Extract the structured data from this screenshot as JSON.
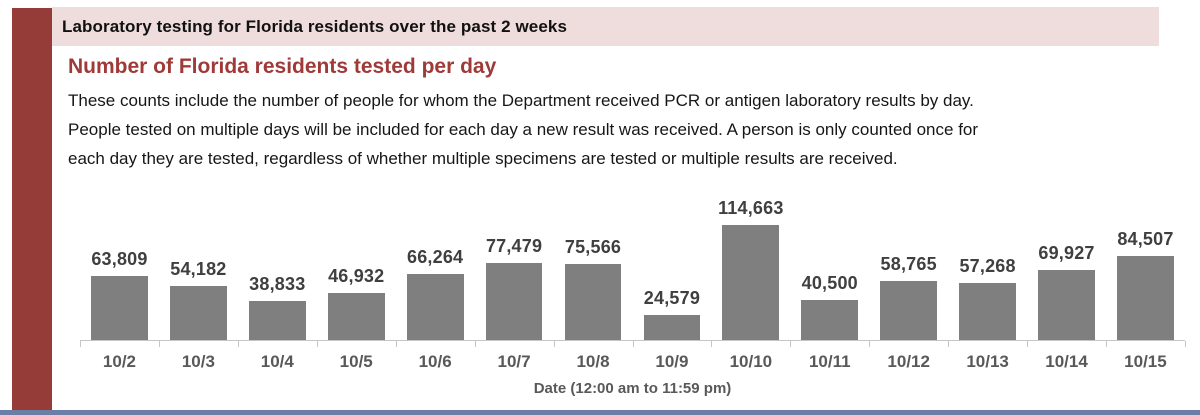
{
  "page": {
    "header_title": "Laboratory testing for Florida residents over the past 2 weeks"
  },
  "section": {
    "heading": "Number of Florida residents tested per day",
    "description_lines": [
      "These counts include the number of people for whom the Department received PCR or antigen laboratory results by day.",
      "People tested on multiple days will be included for each day a new result was received. A person is only counted once for",
      "each day they are tested, regardless of whether multiple specimens are tested or multiple results are received."
    ]
  },
  "chart_data": {
    "type": "bar",
    "title": "Number of Florida residents tested per day",
    "categories": [
      "10/2",
      "10/3",
      "10/4",
      "10/5",
      "10/6",
      "10/7",
      "10/8",
      "10/9",
      "10/10",
      "10/11",
      "10/12",
      "10/13",
      "10/14",
      "10/15"
    ],
    "values": [
      63809,
      54182,
      38833,
      46932,
      66264,
      77479,
      75566,
      24579,
      114663,
      40500,
      58765,
      57268,
      69927,
      84507
    ],
    "value_labels": [
      "63,809",
      "54,182",
      "38,833",
      "46,932",
      "66,264",
      "77,479",
      "75,566",
      "24,579",
      "114,663",
      "40,500",
      "58,765",
      "57,268",
      "69,927",
      "84,507"
    ],
    "xlabel": "Date (12:00 am to 11:59 pm)",
    "ylabel": "",
    "ylim": [
      0,
      120000
    ],
    "grid": false,
    "legend": false,
    "bar_color": "#7f7f7f",
    "data_label_color": "#3f3f3f"
  },
  "colors": {
    "accent_maroon": "#953c39",
    "header_bg": "#efdddd",
    "heading_text": "#9e3b39",
    "axis_text": "#595959",
    "footer_blue": "#6d7ea6"
  }
}
